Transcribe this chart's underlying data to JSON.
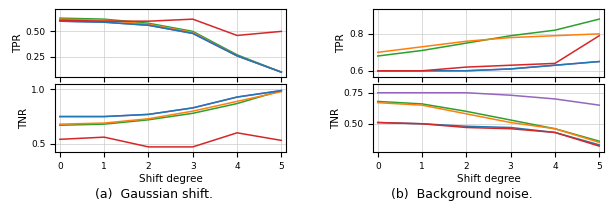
{
  "x": [
    0,
    1,
    2,
    3,
    4,
    5
  ],
  "gauss_tpr": {
    "green": [
      0.63,
      0.62,
      0.58,
      0.5,
      0.27,
      0.1
    ],
    "orange": [
      0.62,
      0.61,
      0.57,
      0.49,
      0.26,
      0.1
    ],
    "purple": [
      0.6,
      0.59,
      0.56,
      0.48,
      0.26,
      0.1
    ],
    "blue": [
      0.6,
      0.59,
      0.56,
      0.48,
      0.26,
      0.1
    ],
    "red": [
      0.61,
      0.6,
      0.6,
      0.62,
      0.46,
      0.5
    ]
  },
  "gauss_tnr": {
    "green": [
      0.67,
      0.68,
      0.72,
      0.78,
      0.87,
      0.99
    ],
    "orange": [
      0.68,
      0.69,
      0.73,
      0.8,
      0.89,
      0.98
    ],
    "purple": [
      0.75,
      0.75,
      0.77,
      0.83,
      0.93,
      0.99
    ],
    "blue": [
      0.75,
      0.75,
      0.77,
      0.83,
      0.93,
      0.99
    ],
    "red": [
      0.54,
      0.56,
      0.47,
      0.47,
      0.6,
      0.53
    ]
  },
  "bg_tpr": {
    "green": [
      0.68,
      0.71,
      0.75,
      0.79,
      0.82,
      0.88
    ],
    "orange": [
      0.7,
      0.73,
      0.76,
      0.78,
      0.79,
      0.8
    ],
    "purple": [
      0.6,
      0.6,
      0.6,
      0.61,
      0.63,
      0.65
    ],
    "blue": [
      0.6,
      0.6,
      0.6,
      0.61,
      0.63,
      0.65
    ],
    "red": [
      0.6,
      0.6,
      0.62,
      0.63,
      0.64,
      0.79
    ]
  },
  "bg_tnr": {
    "green": [
      0.68,
      0.66,
      0.6,
      0.53,
      0.46,
      0.36
    ],
    "orange": [
      0.67,
      0.65,
      0.58,
      0.51,
      0.46,
      0.35
    ],
    "purple": [
      0.75,
      0.75,
      0.75,
      0.73,
      0.7,
      0.65
    ],
    "blue": [
      0.51,
      0.5,
      0.48,
      0.47,
      0.43,
      0.33
    ],
    "red": [
      0.51,
      0.5,
      0.47,
      0.46,
      0.43,
      0.32
    ]
  },
  "colors": {
    "green": "#2ca02c",
    "orange": "#ff7f0e",
    "blue": "#1f77b4",
    "purple": "#9467bd",
    "red": "#d62728"
  },
  "gauss_tpr_ylim": [
    0.05,
    0.72
  ],
  "gauss_tnr_ylim": [
    0.42,
    1.05
  ],
  "bg_tpr_ylim": [
    0.565,
    0.935
  ],
  "bg_tnr_ylim": [
    0.27,
    0.82
  ],
  "gauss_tpr_yticks": [
    0.25,
    0.5
  ],
  "gauss_tnr_yticks": [
    0.5,
    1.0
  ],
  "bg_tpr_yticks": [
    0.6,
    0.8
  ],
  "bg_tnr_yticks": [
    0.5,
    0.75
  ],
  "xlabel": "Shift degree",
  "ylabel_tpr": "TPR",
  "ylabel_tnr": "TNR",
  "caption_a": "(a)  Gaussian shift.",
  "caption_b": "(b)  Background noise."
}
